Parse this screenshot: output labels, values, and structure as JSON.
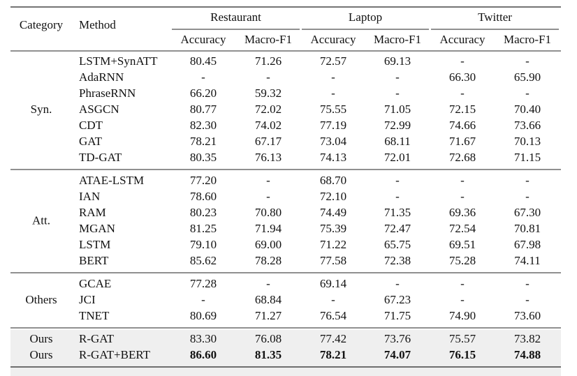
{
  "header": {
    "category": "Category",
    "method": "Method",
    "groups": [
      "Restaurant",
      "Laptop",
      "Twitter"
    ],
    "metrics": [
      "Accuracy",
      "Macro-F1",
      "Accuracy",
      "Macro-F1",
      "Accuracy",
      "Macro-F1"
    ]
  },
  "sections": [
    {
      "category": "Syn.",
      "rows": [
        {
          "method": "LSTM+SynATT",
          "values": [
            "80.45",
            "71.26",
            "72.57",
            "69.13",
            "-",
            "-"
          ]
        },
        {
          "method": "AdaRNN",
          "values": [
            "-",
            "-",
            "-",
            "-",
            "66.30",
            "65.90"
          ]
        },
        {
          "method": "PhraseRNN",
          "values": [
            "66.20",
            "59.32",
            "-",
            "-",
            "-",
            "-"
          ]
        },
        {
          "method": "ASGCN",
          "values": [
            "80.77",
            "72.02",
            "75.55",
            "71.05",
            "72.15",
            "70.40"
          ]
        },
        {
          "method": "CDT",
          "values": [
            "82.30",
            "74.02",
            "77.19",
            "72.99",
            "74.66",
            "73.66"
          ]
        },
        {
          "method": "GAT",
          "values": [
            "78.21",
            "67.17",
            "73.04",
            "68.11",
            "71.67",
            "70.13"
          ]
        },
        {
          "method": "TD-GAT",
          "values": [
            "80.35",
            "76.13",
            "74.13",
            "72.01",
            "72.68",
            "71.15"
          ]
        }
      ]
    },
    {
      "category": "Att.",
      "rows": [
        {
          "method": "ATAE-LSTM",
          "values": [
            "77.20",
            "-",
            "68.70",
            "-",
            "-",
            "-"
          ]
        },
        {
          "method": "IAN",
          "values": [
            "78.60",
            "-",
            "72.10",
            "-",
            "-",
            "-"
          ]
        },
        {
          "method": "RAM",
          "values": [
            "80.23",
            "70.80",
            "74.49",
            "71.35",
            "69.36",
            "67.30"
          ]
        },
        {
          "method": "MGAN",
          "values": [
            "81.25",
            "71.94",
            "75.39",
            "72.47",
            "72.54",
            "70.81"
          ]
        },
        {
          "method": "LSTM",
          "values": [
            "79.10",
            "69.00",
            "71.22",
            "65.75",
            "69.51",
            "67.98"
          ]
        },
        {
          "method": "BERT",
          "values": [
            "85.62",
            "78.28",
            "77.58",
            "72.38",
            "75.28",
            "74.11"
          ]
        }
      ]
    },
    {
      "category": "Others",
      "rows": [
        {
          "method": "GCAE",
          "values": [
            "77.28",
            "-",
            "69.14",
            "-",
            "-",
            "-"
          ]
        },
        {
          "method": "JCI",
          "values": [
            "-",
            "68.84",
            "-",
            "67.23",
            "-",
            "-"
          ]
        },
        {
          "method": "TNET",
          "values": [
            "80.69",
            "71.27",
            "76.54",
            "71.75",
            "74.90",
            "73.60"
          ]
        }
      ]
    },
    {
      "rows": [
        {
          "category": "Ours",
          "method": "R-GAT",
          "values": [
            "83.30",
            "76.08",
            "77.42",
            "73.76",
            "75.57",
            "73.82"
          ]
        },
        {
          "category": "Ours",
          "method": "R-GAT+BERT",
          "values": [
            "86.60",
            "81.35",
            "78.21",
            "74.07",
            "76.15",
            "74.88"
          ],
          "bold": true
        }
      ]
    }
  ]
}
